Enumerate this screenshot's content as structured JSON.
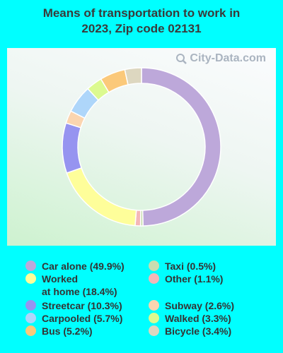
{
  "chart_data": {
    "type": "pie",
    "title_lines": [
      "Means of transportation to work in",
      "2023, Zip code 02131"
    ],
    "categories": [
      "Car alone",
      "Taxi",
      "Other",
      "Worked at home",
      "Streetcar",
      "Subway",
      "Carpooled",
      "Walked",
      "Bus",
      "Bicycle"
    ],
    "values": [
      49.9,
      0.5,
      1.1,
      18.4,
      10.3,
      2.6,
      5.7,
      3.3,
      5.2,
      3.4
    ],
    "colors": [
      "#bda8da",
      "#c8ddb0",
      "#f4b7b8",
      "#fefe9a",
      "#9694f0",
      "#fbd5b0",
      "#aed6fa",
      "#dcfa90",
      "#fbc97a",
      "#ddd7c0"
    ],
    "donut": true
  },
  "legend": [
    {
      "lines": [
        "Car alone (49.9%)"
      ],
      "color": "#bda8da"
    },
    {
      "lines": [
        "Worked",
        "at home (18.4%)"
      ],
      "color": "#fefe9a"
    },
    {
      "lines": [
        "Streetcar (10.3%)"
      ],
      "color": "#9694f0"
    },
    {
      "lines": [
        "Carpooled (5.7%)"
      ],
      "color": "#aed6fa"
    },
    {
      "lines": [
        "Bus (5.2%)"
      ],
      "color": "#fbc97a"
    },
    {
      "lines": [
        "Taxi (0.5%)"
      ],
      "color": "#c8ddb0"
    },
    {
      "lines": [
        "Other (1.1%)"
      ],
      "color": "#f4b7b8"
    },
    {
      "lines": [
        "Subway (2.6%)"
      ],
      "color": "#fbd5b0"
    },
    {
      "lines": [
        "Walked (3.3%)"
      ],
      "color": "#dcfa90"
    },
    {
      "lines": [
        "Bicycle (3.4%)"
      ],
      "color": "#ddd7c0"
    }
  ],
  "watermark": {
    "text": "City-Data.com",
    "icon": "magnifier-icon"
  }
}
